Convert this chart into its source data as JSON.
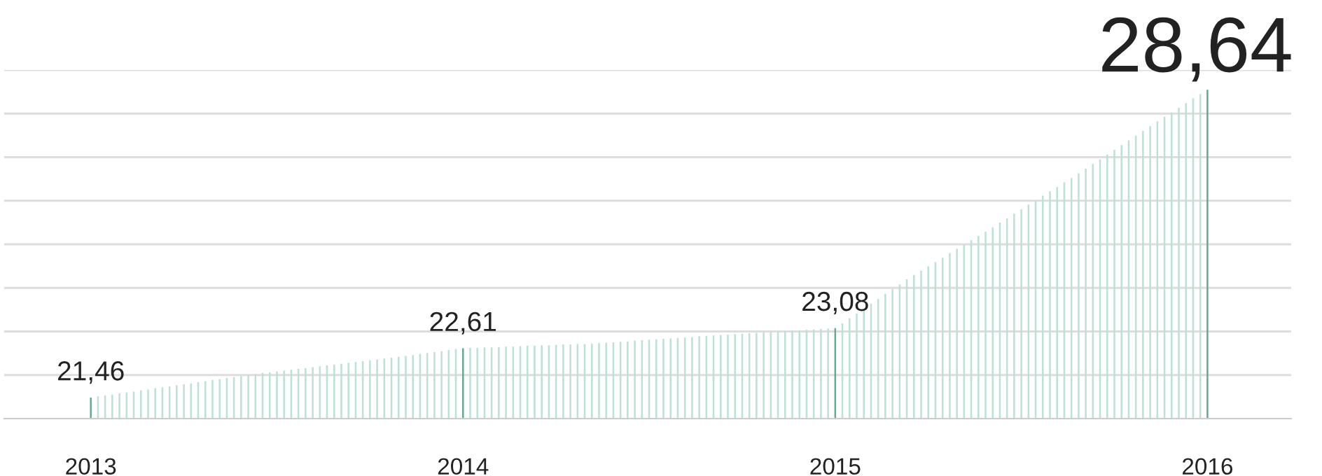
{
  "chart_data": {
    "type": "bar",
    "grid": "y",
    "tick_labels": "x",
    "ylim": [
      20.97,
      29.1
    ],
    "categories": [
      "2013",
      null,
      null,
      null,
      null,
      null,
      null,
      null,
      null,
      null,
      null,
      null,
      null,
      null,
      null,
      null,
      null,
      null,
      null,
      null,
      null,
      null,
      null,
      null,
      null,
      null,
      null,
      null,
      null,
      null,
      null,
      null,
      null,
      null,
      null,
      null,
      null,
      null,
      null,
      null,
      null,
      null,
      null,
      null,
      null,
      null,
      null,
      null,
      null,
      null,
      null,
      null,
      "2014",
      null,
      null,
      null,
      null,
      null,
      null,
      null,
      null,
      null,
      null,
      null,
      null,
      null,
      null,
      null,
      null,
      null,
      null,
      null,
      null,
      null,
      null,
      null,
      null,
      null,
      null,
      null,
      null,
      null,
      null,
      null,
      null,
      null,
      null,
      null,
      null,
      null,
      null,
      null,
      null,
      null,
      null,
      null,
      null,
      null,
      null,
      null,
      null,
      null,
      null,
      null,
      "2015",
      null,
      null,
      null,
      null,
      null,
      null,
      null,
      null,
      null,
      null,
      null,
      null,
      null,
      null,
      null,
      null,
      null,
      null,
      null,
      null,
      null,
      null,
      null,
      null,
      null,
      null,
      null,
      null,
      null,
      null,
      null,
      null,
      null,
      null,
      null,
      null,
      null,
      null,
      null,
      null,
      null,
      null,
      null,
      null,
      null,
      null,
      null,
      null,
      null,
      null,
      null,
      "2016"
    ],
    "values": [
      21.46,
      21.49,
      21.51,
      21.53,
      21.56,
      21.58,
      21.6,
      21.63,
      21.65,
      21.68,
      21.7,
      21.72,
      21.75,
      21.77,
      21.79,
      21.82,
      21.84,
      21.87,
      21.89,
      21.92,
      21.94,
      21.96,
      21.99,
      22.01,
      22.04,
      22.05,
      22.07,
      22.09,
      22.11,
      22.13,
      22.15,
      22.17,
      22.19,
      22.21,
      22.23,
      22.25,
      22.27,
      22.29,
      22.31,
      22.33,
      22.35,
      22.37,
      22.39,
      22.41,
      22.43,
      22.45,
      22.48,
      22.5,
      22.52,
      22.54,
      22.57,
      22.59,
      22.61,
      22.62,
      22.62,
      22.63,
      22.63,
      22.64,
      22.65,
      22.65,
      22.66,
      22.67,
      22.67,
      22.68,
      22.68,
      22.69,
      22.7,
      22.7,
      22.71,
      22.71,
      22.72,
      22.73,
      22.74,
      22.75,
      22.76,
      22.77,
      22.79,
      22.8,
      22.81,
      22.82,
      22.83,
      22.84,
      22.85,
      22.86,
      22.87,
      22.89,
      22.9,
      22.91,
      22.92,
      22.93,
      22.94,
      22.95,
      22.96,
      22.97,
      22.98,
      22.99,
      23.0,
      23.01,
      23.02,
      23.03,
      23.04,
      23.05,
      23.06,
      23.07,
      23.08,
      23.19,
      23.31,
      23.42,
      23.53,
      23.65,
      23.76,
      23.88,
      23.99,
      24.1,
      24.22,
      24.32,
      24.42,
      24.52,
      24.62,
      24.72,
      24.83,
      24.93,
      25.03,
      25.13,
      25.23,
      25.33,
      25.43,
      25.54,
      25.64,
      25.75,
      25.85,
      25.96,
      26.06,
      26.17,
      26.27,
      26.37,
      26.48,
      26.58,
      26.69,
      26.8,
      26.91,
      27.02,
      27.13,
      27.24,
      27.35,
      27.46,
      27.57,
      27.68,
      27.79,
      27.9,
      28.01,
      28.11,
      28.22,
      28.33,
      28.44,
      28.54,
      28.64
    ],
    "colors": [
      "#6aa893",
      "#bfe0d4",
      "#bfe0d4",
      "#bfe0d4",
      "#bfe0d4",
      "#bfe0d4",
      "#bfe0d4",
      "#bfe0d4",
      "#bfe0d4",
      "#bfe0d4",
      "#bfe0d4",
      "#bfe0d4",
      "#bfe0d4",
      "#bfe0d4",
      "#bfe0d4",
      "#bfe0d4",
      "#bfe0d4",
      "#bfe0d4",
      "#bfe0d4",
      "#bfe0d4",
      "#bfe0d4",
      "#bfe0d4",
      "#bfe0d4",
      "#bfe0d4",
      "#bfe0d4",
      "#bfe0d4",
      "#bfe0d4",
      "#bfe0d4",
      "#bfe0d4",
      "#bfe0d4",
      "#bfe0d4",
      "#bfe0d4",
      "#bfe0d4",
      "#bfe0d4",
      "#bfe0d4",
      "#bfe0d4",
      "#bfe0d4",
      "#bfe0d4",
      "#bfe0d4",
      "#bfe0d4",
      "#bfe0d4",
      "#bfe0d4",
      "#bfe0d4",
      "#bfe0d4",
      "#bfe0d4",
      "#bfe0d4",
      "#bfe0d4",
      "#bfe0d4",
      "#bfe0d4",
      "#bfe0d4",
      "#bfe0d4",
      "#bfe0d4",
      "#6aa893",
      "#bfe0d4",
      "#bfe0d4",
      "#bfe0d4",
      "#bfe0d4",
      "#bfe0d4",
      "#bfe0d4",
      "#bfe0d4",
      "#bfe0d4",
      "#bfe0d4",
      "#bfe0d4",
      "#bfe0d4",
      "#bfe0d4",
      "#bfe0d4",
      "#bfe0d4",
      "#bfe0d4",
      "#bfe0d4",
      "#bfe0d4",
      "#bfe0d4",
      "#bfe0d4",
      "#bfe0d4",
      "#bfe0d4",
      "#bfe0d4",
      "#bfe0d4",
      "#bfe0d4",
      "#bfe0d4",
      "#bfe0d4",
      "#bfe0d4",
      "#bfe0d4",
      "#bfe0d4",
      "#bfe0d4",
      "#bfe0d4",
      "#bfe0d4",
      "#bfe0d4",
      "#bfe0d4",
      "#bfe0d4",
      "#bfe0d4",
      "#bfe0d4",
      "#bfe0d4",
      "#bfe0d4",
      "#bfe0d4",
      "#bfe0d4",
      "#bfe0d4",
      "#bfe0d4",
      "#bfe0d4",
      "#bfe0d4",
      "#bfe0d4",
      "#bfe0d4",
      "#bfe0d4",
      "#bfe0d4",
      "#bfe0d4",
      "#bfe0d4",
      "#6aa893",
      "#bfe0d4",
      "#bfe0d4",
      "#bfe0d4",
      "#bfe0d4",
      "#bfe0d4",
      "#bfe0d4",
      "#bfe0d4",
      "#bfe0d4",
      "#bfe0d4",
      "#bfe0d4",
      "#bfe0d4",
      "#bfe0d4",
      "#bfe0d4",
      "#bfe0d4",
      "#bfe0d4",
      "#bfe0d4",
      "#bfe0d4",
      "#bfe0d4",
      "#bfe0d4",
      "#bfe0d4",
      "#bfe0d4",
      "#bfe0d4",
      "#bfe0d4",
      "#bfe0d4",
      "#bfe0d4",
      "#bfe0d4",
      "#bfe0d4",
      "#bfe0d4",
      "#bfe0d4",
      "#bfe0d4",
      "#bfe0d4",
      "#bfe0d4",
      "#bfe0d4",
      "#bfe0d4",
      "#bfe0d4",
      "#bfe0d4",
      "#bfe0d4",
      "#bfe0d4",
      "#bfe0d4",
      "#bfe0d4",
      "#bfe0d4",
      "#bfe0d4",
      "#bfe0d4",
      "#bfe0d4",
      "#bfe0d4",
      "#bfe0d4",
      "#bfe0d4",
      "#bfe0d4",
      "#bfe0d4",
      "#bfe0d4",
      "#bfe0d4",
      "#6aa893"
    ],
    "value_labels": [
      "21,46",
      null,
      null,
      null,
      null,
      null,
      null,
      null,
      null,
      null,
      null,
      null,
      null,
      null,
      null,
      null,
      null,
      null,
      null,
      null,
      null,
      null,
      null,
      null,
      null,
      null,
      null,
      null,
      null,
      null,
      null,
      null,
      null,
      null,
      null,
      null,
      null,
      null,
      null,
      null,
      null,
      null,
      null,
      null,
      null,
      null,
      null,
      null,
      null,
      null,
      null,
      null,
      "22,61",
      null,
      null,
      null,
      null,
      null,
      null,
      null,
      null,
      null,
      null,
      null,
      null,
      null,
      null,
      null,
      null,
      null,
      null,
      null,
      null,
      null,
      null,
      null,
      null,
      null,
      null,
      null,
      null,
      null,
      null,
      null,
      null,
      null,
      null,
      null,
      null,
      null,
      null,
      null,
      null,
      null,
      null,
      null,
      null,
      null,
      null,
      null,
      null,
      null,
      null,
      null,
      "23,08",
      null,
      null,
      null,
      null,
      null,
      null,
      null,
      null,
      null,
      null,
      null,
      null,
      null,
      null,
      null,
      null,
      null,
      null,
      null,
      null,
      null,
      null,
      null,
      null,
      null,
      null,
      null,
      null,
      null,
      null,
      null,
      null,
      null,
      null,
      null,
      null,
      null,
      null,
      null,
      null,
      null,
      null,
      null,
      null,
      null,
      null,
      null,
      null,
      null,
      null,
      null,
      "28,64"
    ]
  }
}
